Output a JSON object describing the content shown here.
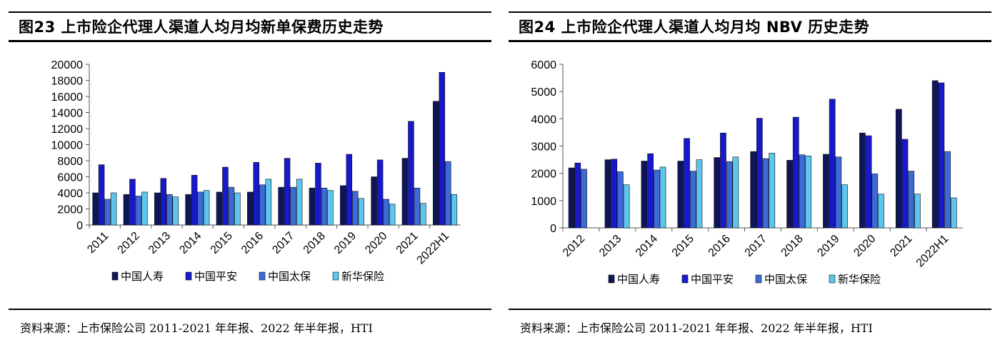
{
  "panels": [
    {
      "title": "图23 上市险企代理人渠道人均月均新单保费历史走势",
      "source": "资料来源：上市保险公司 2011-2021 年年报、2022 年半年报，HTI"
    },
    {
      "title": "图24 上市险企代理人渠道人均月均 NBV 历史走势",
      "source": "资料来源：上市保险公司 2011-2021 年年报、2022 年半年报，HTI"
    }
  ],
  "series_colors": [
    "#0d1657",
    "#1818cc",
    "#3c6ad6",
    "#5cc6ee"
  ],
  "chart_data": [
    {
      "type": "bar",
      "title": "",
      "xlabel": "",
      "ylabel": "",
      "ylim": [
        0,
        20000
      ],
      "yticks": [
        0,
        2000,
        4000,
        6000,
        8000,
        10000,
        12000,
        14000,
        16000,
        18000,
        20000
      ],
      "grid": false,
      "legend_position": "bottom",
      "categories": [
        "2011",
        "2012",
        "2013",
        "2014",
        "2015",
        "2016",
        "2017",
        "2018",
        "2019",
        "2020",
        "2021",
        "2022H1"
      ],
      "series": [
        {
          "name": "中国人寿",
          "values": [
            4000,
            3800,
            4000,
            3800,
            4100,
            4100,
            4700,
            4600,
            4900,
            6000,
            8300,
            15400
          ]
        },
        {
          "name": "中国平安",
          "values": [
            7500,
            5700,
            5800,
            6200,
            7200,
            7800,
            8300,
            7700,
            8800,
            8100,
            12900,
            19000
          ]
        },
        {
          "name": "中国太保",
          "values": [
            3200,
            3600,
            3800,
            4100,
            4700,
            5000,
            4700,
            4600,
            4200,
            3200,
            4600,
            7900
          ]
        },
        {
          "name": "新华保险",
          "values": [
            4000,
            4100,
            3500,
            4300,
            4000,
            5700,
            5700,
            4300,
            3300,
            2600,
            2700,
            3800
          ]
        }
      ]
    },
    {
      "type": "bar",
      "title": "",
      "xlabel": "",
      "ylabel": "",
      "ylim": [
        0,
        6000
      ],
      "yticks": [
        0,
        1000,
        2000,
        3000,
        4000,
        5000,
        6000
      ],
      "grid": false,
      "legend_position": "bottom",
      "categories": [
        "2012",
        "2013",
        "2014",
        "2015",
        "2016",
        "2017",
        "2018",
        "2019",
        "2020",
        "2021",
        "2022H1"
      ],
      "series": [
        {
          "name": "中国人寿",
          "values": [
            2200,
            2500,
            2450,
            2450,
            2580,
            2800,
            2480,
            2700,
            3480,
            4350,
            5400
          ]
        },
        {
          "name": "中国平安",
          "values": [
            2380,
            2520,
            2720,
            3280,
            3480,
            4020,
            4060,
            4720,
            3380,
            3250,
            5320
          ]
        },
        {
          "name": "中国太保",
          "values": [
            2150,
            2060,
            2120,
            2080,
            2430,
            2540,
            2680,
            2600,
            1980,
            2080,
            2800
          ]
        },
        {
          "name": "新华保险",
          "values": [
            null,
            1580,
            2230,
            2500,
            2600,
            2740,
            2640,
            1580,
            1240,
            1240,
            1100
          ]
        }
      ]
    }
  ]
}
